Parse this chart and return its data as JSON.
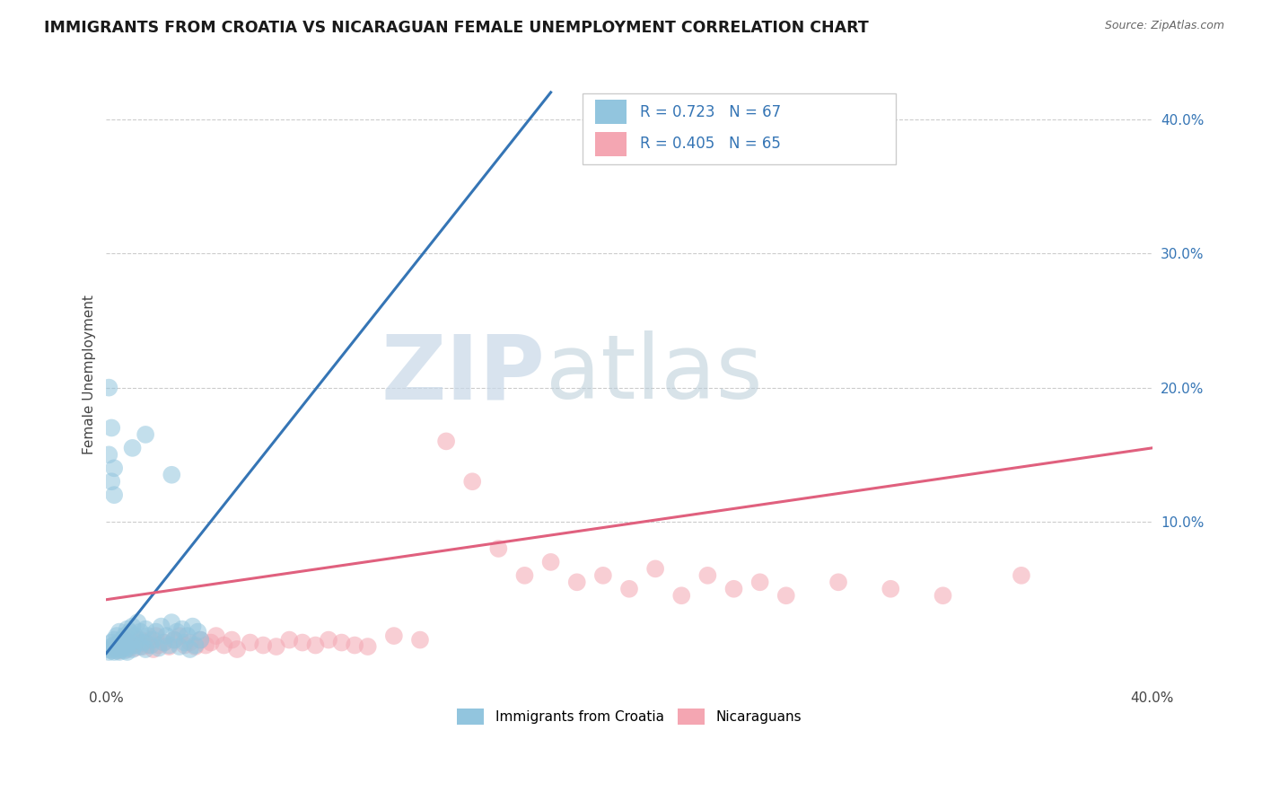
{
  "title": "IMMIGRANTS FROM CROATIA VS NICARAGUAN FEMALE UNEMPLOYMENT CORRELATION CHART",
  "source": "Source: ZipAtlas.com",
  "ylabel": "Female Unemployment",
  "y_tick_labels": [
    "10.0%",
    "20.0%",
    "30.0%",
    "40.0%"
  ],
  "y_tick_values": [
    0.1,
    0.2,
    0.3,
    0.4
  ],
  "x_range": [
    0.0,
    0.4
  ],
  "y_range": [
    -0.02,
    0.44
  ],
  "legend_blue_label": "Immigrants from Croatia",
  "legend_pink_label": "Nicaraguans",
  "legend_R_blue": "R = 0.723",
  "legend_N_blue": "N = 67",
  "legend_R_pink": "R = 0.405",
  "legend_N_pink": "N = 65",
  "blue_color": "#92c5de",
  "pink_color": "#f4a6b2",
  "trendline_blue_color": "#3575b5",
  "trendline_pink_color": "#e0607e",
  "watermark_zip": "ZIP",
  "watermark_atlas": "atlas",
  "grid_color": "#cccccc",
  "bg_color": "#ffffff",
  "blue_scatter_x": [
    0.001,
    0.002,
    0.002,
    0.003,
    0.003,
    0.004,
    0.004,
    0.005,
    0.005,
    0.005,
    0.006,
    0.006,
    0.007,
    0.007,
    0.008,
    0.008,
    0.009,
    0.009,
    0.01,
    0.01,
    0.011,
    0.011,
    0.012,
    0.012,
    0.013,
    0.013,
    0.014,
    0.015,
    0.015,
    0.016,
    0.017,
    0.018,
    0.019,
    0.02,
    0.021,
    0.022,
    0.023,
    0.024,
    0.025,
    0.026,
    0.027,
    0.028,
    0.029,
    0.03,
    0.031,
    0.032,
    0.033,
    0.034,
    0.035,
    0.036,
    0.001,
    0.002,
    0.003,
    0.004,
    0.005,
    0.006,
    0.007,
    0.008,
    0.001,
    0.002,
    0.003,
    0.001,
    0.002,
    0.003,
    0.01,
    0.015,
    0.025
  ],
  "blue_scatter_y": [
    0.005,
    0.007,
    0.01,
    0.008,
    0.012,
    0.006,
    0.015,
    0.005,
    0.01,
    0.018,
    0.007,
    0.012,
    0.008,
    0.015,
    0.006,
    0.02,
    0.01,
    0.018,
    0.005,
    0.022,
    0.008,
    0.015,
    0.012,
    0.025,
    0.007,
    0.018,
    0.01,
    0.005,
    0.02,
    0.015,
    0.008,
    0.012,
    0.018,
    0.006,
    0.022,
    0.01,
    0.015,
    0.008,
    0.025,
    0.012,
    0.018,
    0.007,
    0.02,
    0.01,
    0.015,
    0.005,
    0.022,
    0.008,
    0.018,
    0.012,
    0.003,
    0.004,
    0.003,
    0.004,
    0.003,
    0.005,
    0.004,
    0.003,
    0.15,
    0.13,
    0.12,
    0.2,
    0.17,
    0.14,
    0.155,
    0.165,
    0.135
  ],
  "pink_scatter_x": [
    0.002,
    0.003,
    0.004,
    0.005,
    0.005,
    0.006,
    0.007,
    0.008,
    0.009,
    0.01,
    0.01,
    0.011,
    0.012,
    0.013,
    0.014,
    0.015,
    0.016,
    0.017,
    0.018,
    0.019,
    0.02,
    0.022,
    0.024,
    0.026,
    0.028,
    0.03,
    0.032,
    0.034,
    0.036,
    0.038,
    0.04,
    0.042,
    0.045,
    0.048,
    0.05,
    0.055,
    0.06,
    0.065,
    0.07,
    0.075,
    0.08,
    0.085,
    0.09,
    0.095,
    0.1,
    0.11,
    0.12,
    0.13,
    0.14,
    0.15,
    0.16,
    0.17,
    0.18,
    0.19,
    0.2,
    0.21,
    0.22,
    0.23,
    0.24,
    0.25,
    0.26,
    0.28,
    0.3,
    0.32,
    0.35
  ],
  "pink_scatter_y": [
    0.005,
    0.008,
    0.006,
    0.01,
    0.004,
    0.007,
    0.012,
    0.005,
    0.009,
    0.008,
    0.015,
    0.006,
    0.01,
    0.012,
    0.007,
    0.01,
    0.008,
    0.012,
    0.005,
    0.015,
    0.008,
    0.01,
    0.007,
    0.012,
    0.015,
    0.008,
    0.01,
    0.007,
    0.012,
    0.008,
    0.01,
    0.015,
    0.008,
    0.012,
    0.005,
    0.01,
    0.008,
    0.007,
    0.012,
    0.01,
    0.008,
    0.012,
    0.01,
    0.008,
    0.007,
    0.015,
    0.012,
    0.16,
    0.13,
    0.08,
    0.06,
    0.07,
    0.055,
    0.06,
    0.05,
    0.065,
    0.045,
    0.06,
    0.05,
    0.055,
    0.045,
    0.055,
    0.05,
    0.045,
    0.06
  ],
  "blue_trendline_x": [
    0.0,
    0.17
  ],
  "blue_trendline_y": [
    0.002,
    0.42
  ],
  "pink_trendline_x": [
    0.0,
    0.4
  ],
  "pink_trendline_y": [
    0.042,
    0.155
  ]
}
